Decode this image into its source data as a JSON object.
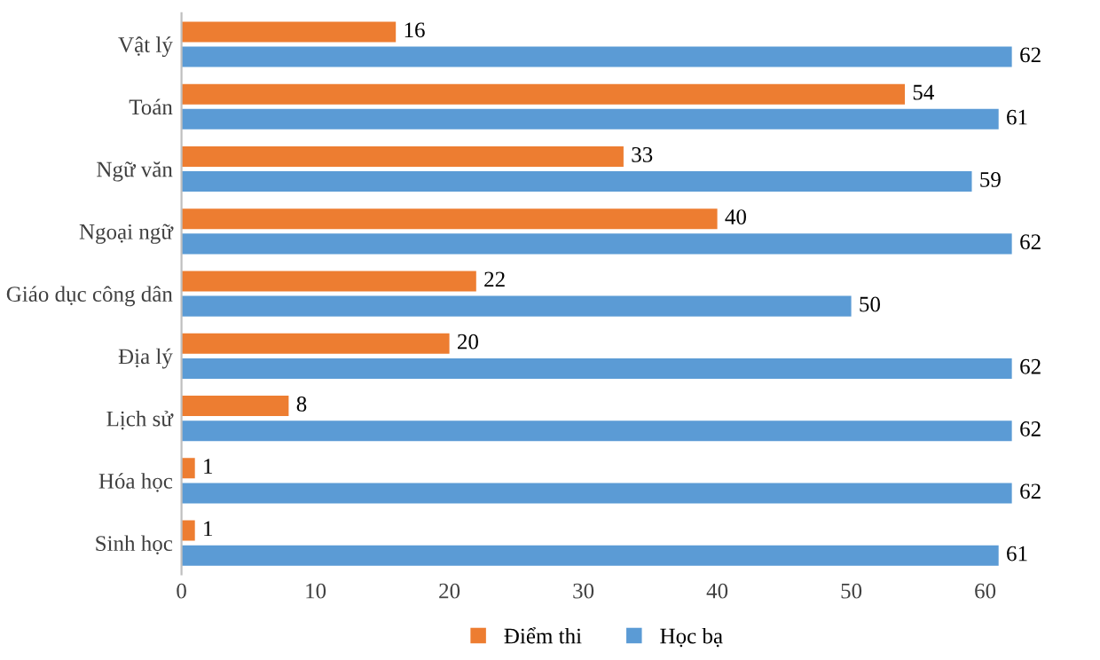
{
  "chart_data": {
    "type": "bar",
    "orientation": "horizontal",
    "categories": [
      "Vật lý",
      "Toán",
      "Ngữ văn",
      "Ngoại ngữ",
      "Giáo dục công dân",
      "Địa lý",
      "Lịch sử",
      "Hóa học",
      "Sinh học"
    ],
    "series": [
      {
        "name": "Điểm thi",
        "color": "#ed7d31",
        "values": [
          16,
          54,
          33,
          40,
          22,
          20,
          8,
          1,
          1
        ]
      },
      {
        "name": "Học bạ",
        "color": "#5b9bd5",
        "values": [
          62,
          61,
          59,
          62,
          50,
          62,
          62,
          62,
          61
        ]
      }
    ],
    "xlim": [
      0,
      62
    ],
    "xticks": [
      0,
      10,
      20,
      30,
      40,
      50,
      60
    ],
    "data_labels": true,
    "legend": "bottom",
    "grid": false
  }
}
